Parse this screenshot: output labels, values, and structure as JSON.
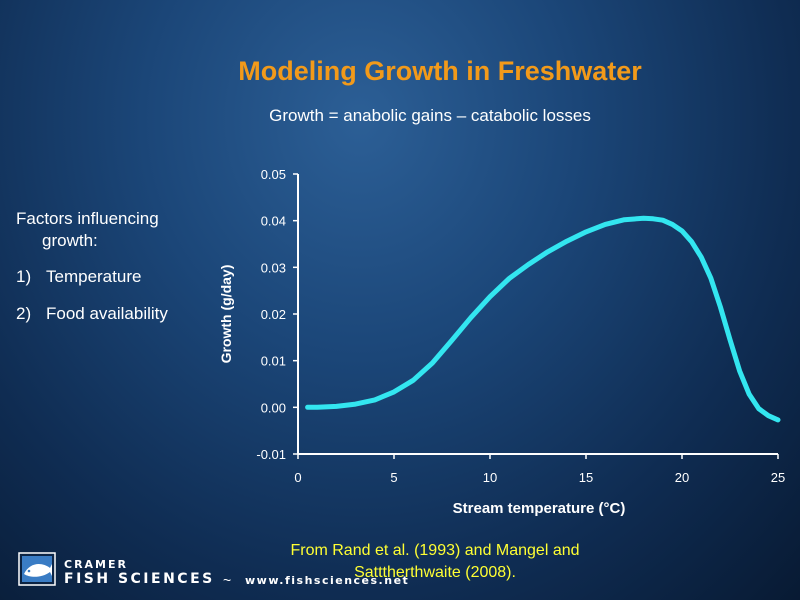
{
  "slide": {
    "title": "Modeling Growth in Freshwater",
    "equation": "Growth = anabolic gains – catabolic losses"
  },
  "factors": {
    "heading_line1": "Factors influencing",
    "heading_line2": "growth:",
    "items": [
      {
        "num": "1)",
        "label": "Temperature"
      },
      {
        "num": "2)",
        "label": "Food availability"
      }
    ]
  },
  "chart_data": {
    "type": "line",
    "title": "",
    "xlabel": "Stream temperature (°C)",
    "ylabel": "Growth (g/day)",
    "xlim": [
      0,
      25
    ],
    "ylim": [
      -0.01,
      0.05
    ],
    "xticks": [
      0,
      5,
      10,
      15,
      20,
      25
    ],
    "xtick_labels": [
      "0",
      "5",
      "10",
      "15",
      "20",
      "25"
    ],
    "yticks": [
      -0.01,
      0.0,
      0.01,
      0.02,
      0.03,
      0.04,
      0.05
    ],
    "ytick_labels": [
      "-0.01",
      "0.00",
      "0.01",
      "0.02",
      "0.03",
      "0.04",
      "0.05"
    ],
    "grid": false,
    "series": [
      {
        "color": "#33e6f0",
        "x": [
          0.5,
          1,
          2,
          3,
          4,
          5,
          6,
          7,
          8,
          9,
          10,
          11,
          12,
          13,
          14,
          15,
          16,
          17,
          18,
          18.5,
          19,
          19.5,
          20,
          20.5,
          21,
          21.5,
          22,
          22.5,
          23,
          23.5,
          24,
          24.5,
          25
        ],
        "y": [
          0.0,
          0.0,
          0.0002,
          0.0007,
          0.0016,
          0.0033,
          0.0058,
          0.0095,
          0.0143,
          0.0192,
          0.0237,
          0.0276,
          0.0306,
          0.0333,
          0.0356,
          0.0376,
          0.0392,
          0.0402,
          0.0405,
          0.0404,
          0.0401,
          0.0392,
          0.0378,
          0.0355,
          0.0322,
          0.0277,
          0.0215,
          0.0145,
          0.0078,
          0.0028,
          -0.0003,
          -0.0018,
          -0.0027
        ]
      }
    ]
  },
  "citation": {
    "line1": "From Rand et al. (1993) and Mangel and",
    "line2": "Satttherthwaite (2008)."
  },
  "logo": {
    "top": "CRAMER",
    "main": "FISH SCIENCES",
    "tilde": "~",
    "url": "www.fishsciences.net"
  }
}
